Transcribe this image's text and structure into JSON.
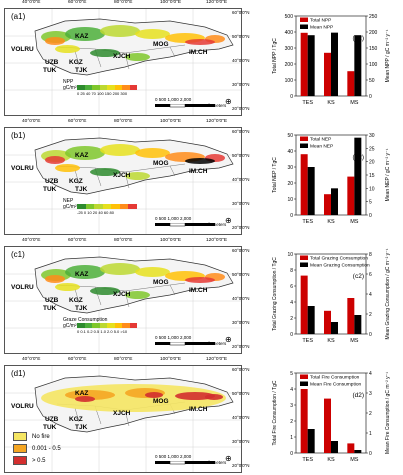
{
  "rows": [
    {
      "id": "a1",
      "map_id": "(a1)",
      "chart_id": "(a2)",
      "legend_title": "NPP",
      "legend_unit": "gC/m²",
      "legend_ticks": "0  25  40  70 100 150 200 300",
      "colors": [
        "#2e8b2e",
        "#4caf3a",
        "#7fc72b",
        "#bcd831",
        "#e6e01e",
        "#ffc107",
        "#ff8c1a",
        "#e53935"
      ],
      "kind": "ramp"
    },
    {
      "id": "b1",
      "map_id": "(b1)",
      "chart_id": "(b2)",
      "legend_title": "NEP",
      "legend_unit": "gC/m²",
      "legend_ticks": "-25  0  10  20  40  60  80",
      "colors": [
        "#2e8b2e",
        "#7fc72b",
        "#bcd831",
        "#e6e01e",
        "#ffc107",
        "#ff8c1a",
        "#e53935"
      ],
      "kind": "ramp"
    },
    {
      "id": "c1",
      "map_id": "(c1)",
      "chart_id": "(c2)",
      "legend_title": "Graze Consumption",
      "legend_unit": "gC/m²",
      "legend_ticks": "0  0.1  0.2  0.5  1.0  2.0  5.0  >10",
      "colors": [
        "#2e8b2e",
        "#4caf3a",
        "#7fc72b",
        "#bcd831",
        "#e6e01e",
        "#ffc107",
        "#ff8c1a",
        "#e53935"
      ],
      "kind": "ramp"
    },
    {
      "id": "d1",
      "map_id": "(d1)",
      "chart_id": "(d2)",
      "fire_legend": [
        {
          "label": "No fire",
          "color": "#f5e663"
        },
        {
          "label": "0.001 - 0.5",
          "color": "#f5a623"
        },
        {
          "label": "> 0.5",
          "color": "#d32f2f"
        }
      ],
      "kind": "fire"
    }
  ],
  "map_common": {
    "lon_labels": [
      "40°0'0\"E",
      "60°0'0\"E",
      "80°0'0\"E",
      "100°0'0\"E",
      "120°0'0\"E"
    ],
    "lat_left": [
      "50°0'0\"N",
      "40°0'0\"N",
      "30°0'0\"N",
      "20°0'0\"N"
    ],
    "lat_right": [
      "60°0'0\"N",
      "50°0'0\"N",
      "40°0'0\"N",
      "30°0'0\"N",
      "20°0'0\"N"
    ],
    "regions": [
      "VOLRU",
      "KAZ",
      "UZB",
      "TUK",
      "KGZ",
      "TJK",
      "XJCH",
      "MOG",
      "IM.CH"
    ],
    "scale_text": "0  500 1,000        2,000",
    "scale_unit": "Kilometers"
  },
  "chart_data": [
    {
      "type": "bar",
      "title": "(a2)",
      "categories": [
        "TES",
        "KS",
        "MS"
      ],
      "series": [
        {
          "name": "Total NPP",
          "values": [
            395,
            270,
            155
          ],
          "axis": "left",
          "color": "#cc0000"
        },
        {
          "name": "Mean NPP",
          "values": [
            190,
            198,
            190
          ],
          "axis": "right",
          "color": "#000000"
        }
      ],
      "ylabel_left": "Total NPP / TgC",
      "ylabel_right": "Mean NPP / gC m⁻² y⁻¹",
      "ylim_left": [
        0,
        500
      ],
      "ylim_right": [
        0,
        250
      ],
      "yticks_left": [
        0,
        100,
        200,
        300,
        400,
        500
      ],
      "yticks_right": [
        0,
        50,
        100,
        150,
        200,
        250
      ]
    },
    {
      "type": "bar",
      "title": "(b2)",
      "categories": [
        "TES",
        "KS",
        "MS"
      ],
      "series": [
        {
          "name": "Total NEP",
          "values": [
            38,
            13,
            24
          ],
          "axis": "left",
          "color": "#cc0000"
        },
        {
          "name": "Mean NEP",
          "values": [
            18,
            10,
            29
          ],
          "axis": "right",
          "color": "#000000"
        }
      ],
      "ylabel_left": "Total NEP / TgC",
      "ylabel_right": "Mean NEP / gC m⁻² y⁻¹",
      "ylim_left": [
        0,
        50
      ],
      "ylim_right": [
        0,
        30
      ],
      "yticks_left": [
        0,
        10,
        20,
        30,
        40,
        50
      ],
      "yticks_right": [
        0,
        5,
        10,
        15,
        20,
        25,
        30
      ]
    },
    {
      "type": "bar",
      "title": "(c2)",
      "categories": [
        "TES",
        "KS",
        "MS"
      ],
      "series": [
        {
          "name": "Total Grazing Consumption",
          "values": [
            7.3,
            2.9,
            4.5
          ],
          "axis": "left",
          "color": "#cc0000"
        },
        {
          "name": "Mean Grazing Consumption",
          "values": [
            2.8,
            1.2,
            1.9
          ],
          "axis": "right",
          "color": "#000000"
        }
      ],
      "ylabel_left": "Total Grazing Consumption / TgC",
      "ylabel_right": "Mean Grazing Consumption / gC m⁻² y⁻¹",
      "ylim_left": [
        0,
        10
      ],
      "ylim_right": [
        0,
        8
      ],
      "yticks_left": [
        0,
        2,
        4,
        6,
        8,
        10
      ],
      "yticks_right": [
        0,
        2,
        4,
        6,
        8
      ]
    },
    {
      "type": "bar",
      "title": "(d2)",
      "categories": [
        "TES",
        "KS",
        "MS"
      ],
      "series": [
        {
          "name": "Total Fire Consumption",
          "values": [
            4.0,
            3.4,
            0.6
          ],
          "axis": "left",
          "color": "#cc0000"
        },
        {
          "name": "Mean Fire Consumption",
          "values": [
            1.2,
            0.6,
            0.15
          ],
          "axis": "right",
          "color": "#000000"
        }
      ],
      "ylabel_left": "Total Fire Consumption / TgC",
      "ylabel_right": "Mean Fire Consumption / gC m⁻² y⁻¹",
      "ylim_left": [
        0,
        5
      ],
      "ylim_right": [
        0,
        4
      ],
      "yticks_left": [
        0,
        1,
        2,
        3,
        4,
        5
      ],
      "yticks_right": [
        0,
        1,
        2,
        3,
        4
      ]
    }
  ]
}
